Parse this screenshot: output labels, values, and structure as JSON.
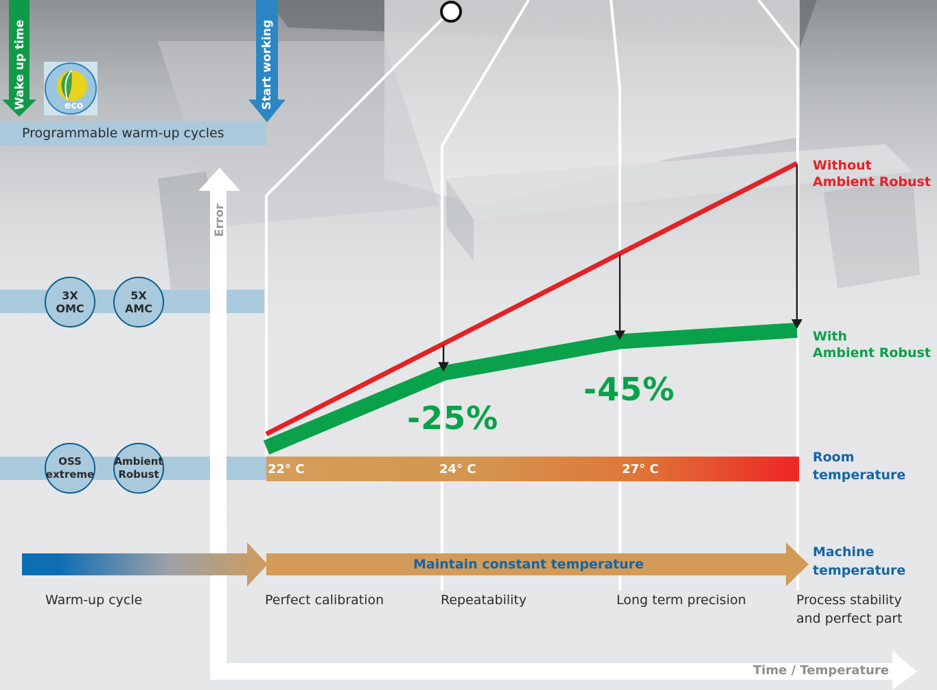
{
  "header": {
    "wake_up_time": "Wake up time",
    "start_working": "Start working",
    "eco_badge": "eco",
    "programmable_cycles": "Programmable warm-up cycles"
  },
  "axes": {
    "y_label": "Error",
    "x_label": "Time / Temperature"
  },
  "options": {
    "row1": [
      {
        "line1": "3X",
        "line2": "OMC"
      },
      {
        "line1": "5X",
        "line2": "AMC"
      }
    ],
    "row2": [
      {
        "line1": "OSS",
        "line2": "extreme"
      },
      {
        "line1": "Ambient",
        "line2": "Robust"
      }
    ]
  },
  "room_temperature": {
    "ticks": [
      "22° C",
      "24° C",
      "27° C"
    ],
    "label_line1": "Room",
    "label_line2": "temperature"
  },
  "machine_temperature": {
    "arrow_text": "Maintain constant temperature",
    "label_line1": "Machine",
    "label_line2": "temperature"
  },
  "stages": [
    {
      "line1": "Warm-up cycle",
      "line2": ""
    },
    {
      "line1": "Perfect calibration",
      "line2": ""
    },
    {
      "line1": "Repeatability",
      "line2": ""
    },
    {
      "line1": "Long term precision",
      "line2": ""
    },
    {
      "line1": "Process stability",
      "line2": "and perfect part"
    }
  ],
  "reductions": [
    "-25%",
    "-45%"
  ],
  "legend": {
    "without_line1": "Without",
    "without_line2": "Ambient Robust",
    "with_line1": "With",
    "with_line2": "Ambient Robust"
  },
  "colors": {
    "without": "#e32227",
    "with": "#0aa14b",
    "accent_blue": "#0a6fb4",
    "band": "#a9c9dd",
    "wake_arrow": "#109a48",
    "start_arrow": "#2d86c4",
    "warm_arrow": "#d49a57"
  },
  "chart_data": {
    "type": "line",
    "categories": [
      "Perfect calibration",
      "Repeatability",
      "Long term precision",
      "Process stability and perfect part"
    ],
    "series": [
      {
        "name": "Without Ambient Robust",
        "values": [
          1.0,
          5.0,
          9.0,
          13.0
        ]
      },
      {
        "name": "With Ambient Robust",
        "values": [
          0.4,
          3.7,
          5.1,
          5.6
        ]
      }
    ],
    "xlabel": "Time / Temperature",
    "ylabel": "Error",
    "annotations": [
      "-25%",
      "-45%"
    ],
    "ylim": [
      0,
      14
    ]
  }
}
